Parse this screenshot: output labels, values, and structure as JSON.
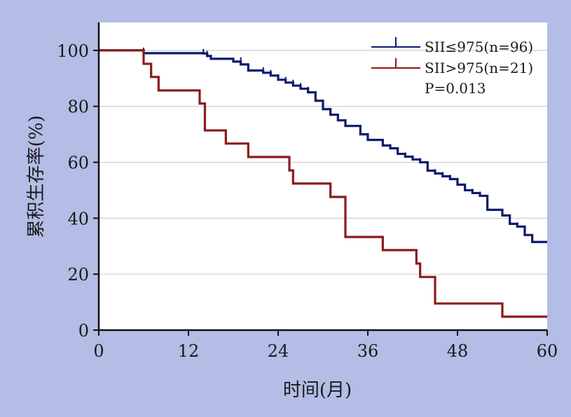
{
  "chart_data": {
    "type": "line",
    "title": "",
    "xlabel": "时间(月)",
    "ylabel": "累积生存率(%)",
    "xlim": [
      0,
      60
    ],
    "ylim": [
      0,
      110
    ],
    "xticks": [
      "0",
      "12",
      "24",
      "36",
      "48",
      "60"
    ],
    "yticks": [
      "0",
      "20",
      "40",
      "60",
      "80",
      "100"
    ],
    "grid": "horizontal",
    "legend_position": "top-right",
    "annotation": "P=0.013",
    "colors": {
      "background": "#b3bde5",
      "plot_bg": "#ffffff"
    },
    "series": [
      {
        "name": "SII≤975(n=96)",
        "color": "#0d1a6e",
        "x": [
          0,
          6,
          14,
          14.5,
          15,
          18,
          19,
          20,
          22,
          23,
          24,
          25,
          26,
          27,
          28,
          29,
          30,
          31,
          32,
          33,
          35,
          36,
          38,
          39,
          40,
          41,
          42,
          43,
          44,
          45,
          46,
          47,
          48,
          49,
          50,
          51,
          52,
          53,
          54,
          55,
          56,
          57,
          58,
          60
        ],
        "y": [
          100,
          99,
          98.9,
          98,
          97,
          96,
          95,
          92.8,
          92,
          91,
          89.5,
          88.5,
          87.4,
          86.3,
          85,
          82,
          79,
          77,
          75,
          73,
          70,
          68,
          66,
          65,
          63,
          62,
          61,
          60,
          57,
          56,
          55,
          54,
          52,
          50,
          49,
          48,
          43,
          43,
          41,
          38,
          37,
          34,
          31.5,
          31.5
        ]
      },
      {
        "name": "SII>975(n=21)",
        "color": "#8b1a1a",
        "x": [
          0,
          6,
          7,
          8,
          13,
          13.5,
          14,
          14.2,
          17,
          20,
          25,
          25.5,
          26,
          31,
          33,
          34,
          38,
          42,
          42.5,
          43,
          45,
          54,
          60
        ],
        "y": [
          100,
          95.2,
          90.5,
          85.7,
          85.7,
          81,
          81,
          71.4,
          66.7,
          61.9,
          61.9,
          57.1,
          52.4,
          47.6,
          33.3,
          33.3,
          28.6,
          28.6,
          23.8,
          19,
          9.5,
          4.8,
          4.8
        ]
      }
    ],
    "censor_marks": {
      "0": [
        [
          6,
          99.5
        ],
        [
          14,
          99
        ],
        [
          14.5,
          98.3
        ],
        [
          19,
          96
        ],
        [
          22,
          92.5
        ],
        [
          23,
          91.5
        ],
        [
          24,
          90
        ],
        [
          25,
          89
        ],
        [
          26,
          88
        ],
        [
          27,
          86.8
        ],
        [
          28,
          85.5
        ],
        [
          31,
          77
        ],
        [
          32,
          75
        ],
        [
          33,
          73
        ],
        [
          36,
          68
        ],
        [
          39,
          65
        ],
        [
          40,
          63
        ],
        [
          41,
          62
        ],
        [
          43,
          60
        ],
        [
          44,
          57
        ],
        [
          45,
          56
        ],
        [
          46,
          55
        ],
        [
          47,
          54
        ],
        [
          49,
          50
        ],
        [
          50,
          49
        ],
        [
          51,
          48
        ],
        [
          56,
          37
        ]
      ],
      "1": []
    }
  }
}
